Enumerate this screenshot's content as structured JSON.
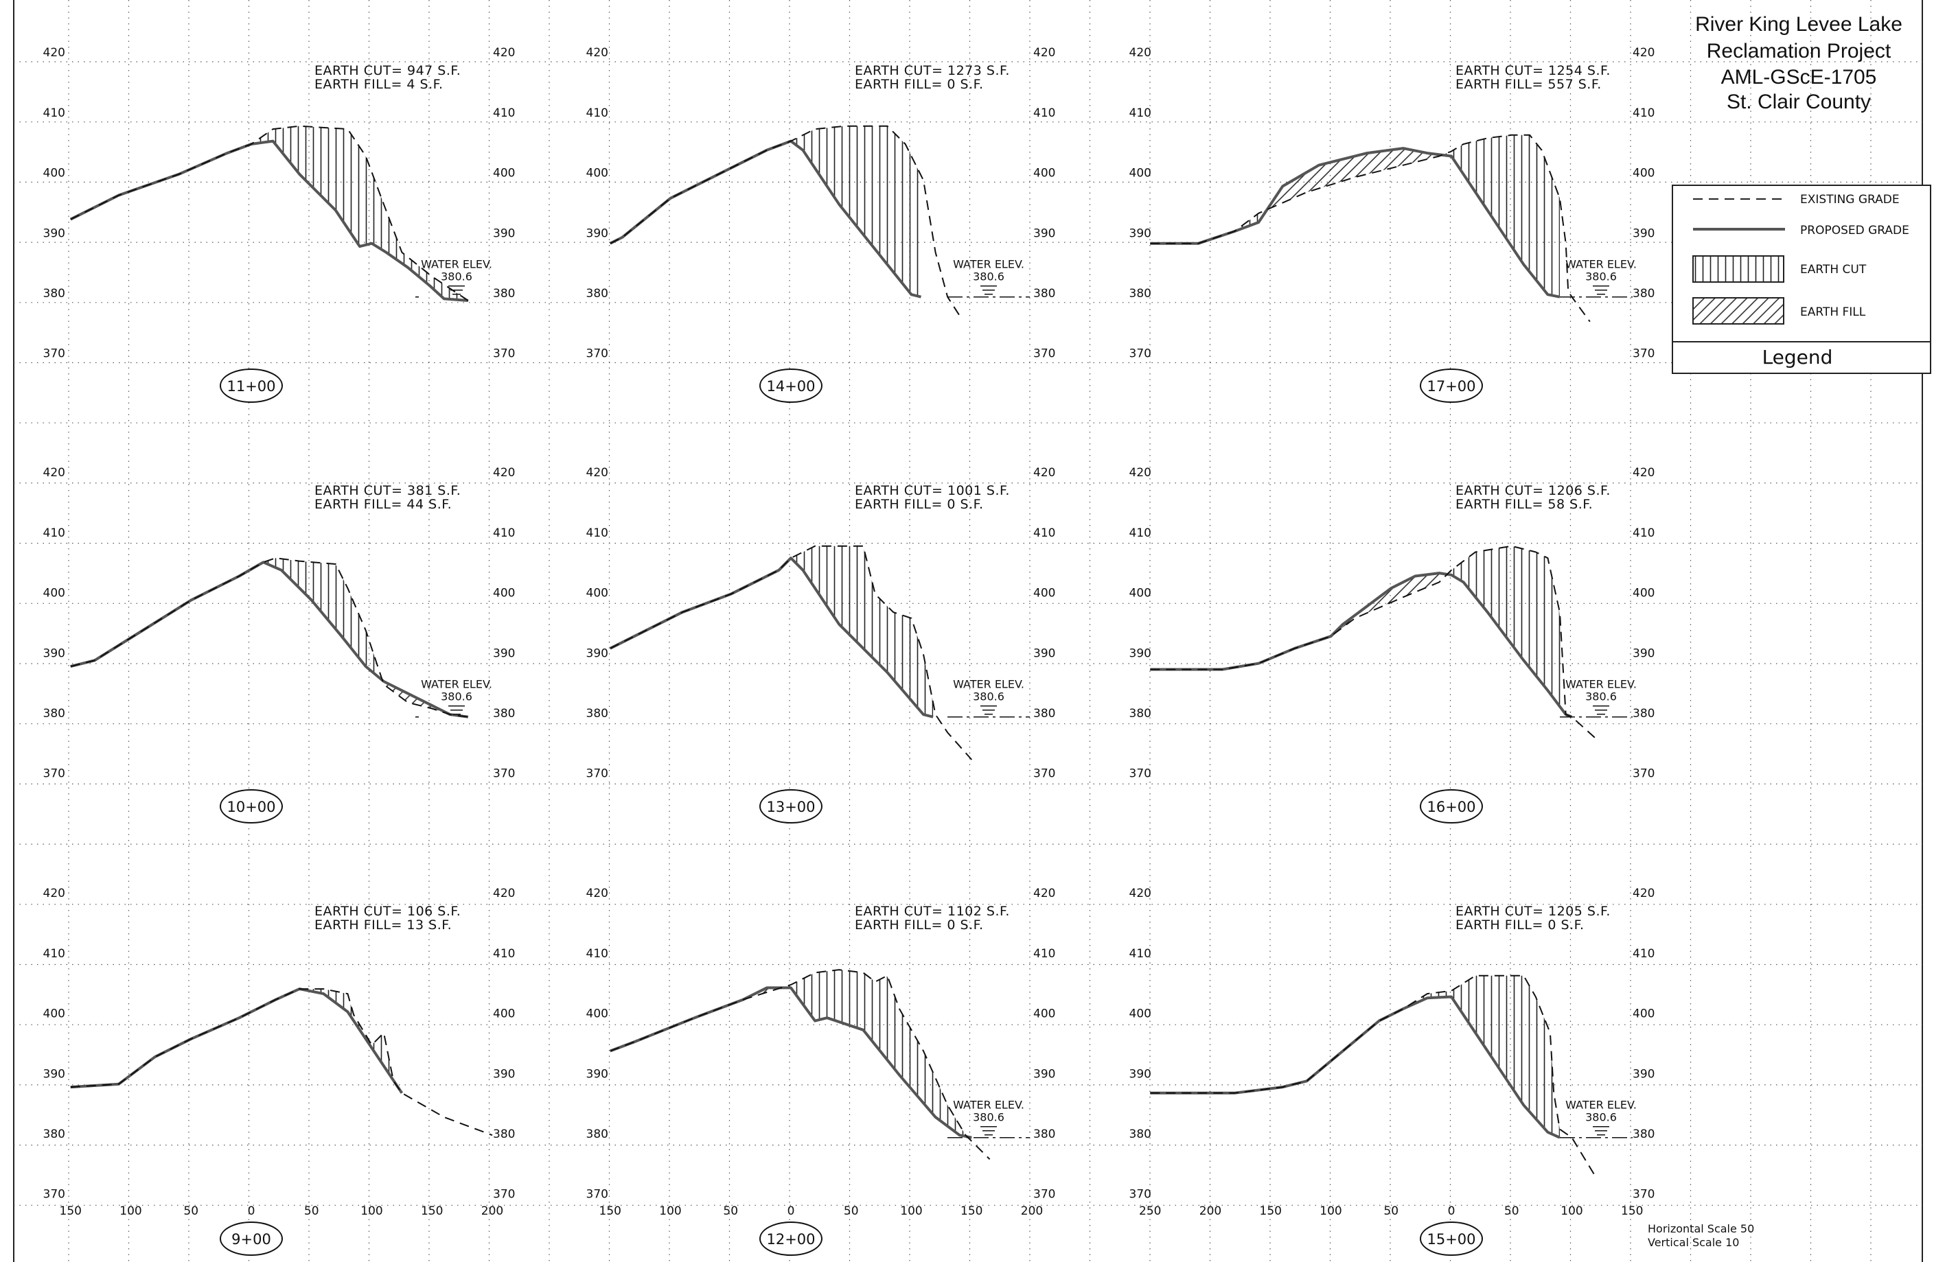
{
  "title": {
    "lines": [
      "River King Levee Lake",
      "Reclamation Project",
      "AML-GScE-1705",
      "St. Clair County"
    ]
  },
  "legend": {
    "title": "Legend",
    "items": [
      {
        "label": "EXISTING GRADE",
        "kind": "existing"
      },
      {
        "label": "PROPOSED GRADE",
        "kind": "proposed"
      },
      {
        "label": "EARTH CUT",
        "kind": "cut"
      },
      {
        "label": "EARTH FILL",
        "kind": "fill"
      }
    ]
  },
  "scale_note": {
    "horizontal": "Horizontal Scale 50",
    "vertical": "Vertical Scale 10"
  },
  "water_label": {
    "line1": "WATER ELEV.",
    "line2": "380.6"
  },
  "elev_ticks": [
    "370",
    "380",
    "390",
    "400",
    "410",
    "420"
  ],
  "offset_labels": {
    "col1": [
      "150",
      "100",
      "50",
      "0",
      "50",
      "100",
      "150",
      "200"
    ],
    "col2": [
      "150",
      "100",
      "50",
      "0",
      "50",
      "100",
      "150",
      "200"
    ],
    "col3": [
      "250",
      "200",
      "150",
      "100",
      "50",
      "0",
      "50",
      "100",
      "150"
    ]
  },
  "chart_data": [
    {
      "type": "line",
      "station": "11+00",
      "cut_label": "EARTH CUT=",
      "cut": "947",
      "fill_label": "EARTH FILL=",
      "fill": "4",
      "unit": "S.F.",
      "ylim": [
        370,
        420
      ],
      "water": true,
      "existing": [
        [
          -150,
          393.5
        ],
        [
          -110,
          397.5
        ],
        [
          -60,
          401
        ],
        [
          -20,
          404.5
        ],
        [
          0,
          406
        ],
        [
          18,
          408.5
        ],
        [
          40,
          409
        ],
        [
          80,
          408.5
        ],
        [
          95,
          404
        ],
        [
          110,
          396
        ],
        [
          125,
          388
        ],
        [
          150,
          384
        ],
        [
          165,
          382
        ],
        [
          180,
          380
        ]
      ],
      "proposed": [
        [
          -150,
          393.5
        ],
        [
          -110,
          397.5
        ],
        [
          -60,
          401
        ],
        [
          -20,
          404.5
        ],
        [
          0,
          406
        ],
        [
          18,
          406.5
        ],
        [
          40,
          401
        ],
        [
          70,
          395
        ],
        [
          90,
          389
        ],
        [
          100,
          389.5
        ],
        [
          112,
          388
        ],
        [
          130,
          385.5
        ],
        [
          148,
          382.5
        ],
        [
          160,
          380.3
        ],
        [
          180,
          380
        ]
      ]
    },
    {
      "type": "line",
      "station": "14+00",
      "cut_label": "EARTH CUT=",
      "cut": "1273",
      "fill_label": "EARTH FILL=",
      "fill": "0",
      "unit": "S.F.",
      "ylim": [
        370,
        420
      ],
      "water": true,
      "existing": [
        [
          -150,
          389.5
        ],
        [
          -140,
          390.5
        ],
        [
          -100,
          397
        ],
        [
          -60,
          401
        ],
        [
          -20,
          405
        ],
        [
          0,
          406.5
        ],
        [
          20,
          408.5
        ],
        [
          45,
          409
        ],
        [
          80,
          409
        ],
        [
          95,
          406
        ],
        [
          110,
          400
        ],
        [
          120,
          388
        ],
        [
          130,
          380.6
        ],
        [
          140,
          377.5
        ]
      ],
      "proposed": [
        [
          -150,
          389.5
        ],
        [
          -140,
          390.5
        ],
        [
          -100,
          397
        ],
        [
          -60,
          401
        ],
        [
          -20,
          405
        ],
        [
          0,
          406.5
        ],
        [
          10,
          405
        ],
        [
          40,
          396
        ],
        [
          80,
          386
        ],
        [
          100,
          381
        ],
        [
          108,
          380.6
        ]
      ]
    },
    {
      "type": "line",
      "station": "17+00",
      "cut_label": "EARTH CUT=",
      "cut": "1254",
      "fill_label": "EARTH FILL=",
      "fill": "557",
      "unit": "S.F.",
      "ylim": [
        370,
        420
      ],
      "water": true,
      "existing": [
        [
          -250,
          389.5
        ],
        [
          -210,
          389.5
        ],
        [
          -180,
          391.5
        ],
        [
          -160,
          394.5
        ],
        [
          -120,
          398
        ],
        [
          -80,
          400.5
        ],
        [
          -40,
          402.5
        ],
        [
          -10,
          404
        ],
        [
          0,
          404.8
        ],
        [
          10,
          406
        ],
        [
          30,
          407
        ],
        [
          50,
          407.5
        ],
        [
          65,
          407.5
        ],
        [
          75,
          405
        ],
        [
          90,
          397
        ],
        [
          95,
          389.5
        ],
        [
          97,
          381.5
        ],
        [
          100,
          380.6
        ],
        [
          115,
          376.5
        ]
      ],
      "proposed": [
        [
          -250,
          389.5
        ],
        [
          -210,
          389.5
        ],
        [
          -180,
          391.5
        ],
        [
          -160,
          393
        ],
        [
          -140,
          399
        ],
        [
          -110,
          402.5
        ],
        [
          -70,
          404.5
        ],
        [
          -40,
          405.3
        ],
        [
          -20,
          404.5
        ],
        [
          0,
          404
        ],
        [
          20,
          398
        ],
        [
          40,
          392
        ],
        [
          60,
          386
        ],
        [
          80,
          381
        ],
        [
          90,
          380.6
        ]
      ]
    },
    {
      "type": "line",
      "station": "10+00",
      "cut_label": "EARTH CUT=",
      "cut": "381",
      "fill_label": "EARTH FILL=",
      "fill": "44",
      "unit": "S.F.",
      "ylim": [
        370,
        420
      ],
      "water": true,
      "existing": [
        [
          -150,
          389
        ],
        [
          -130,
          390
        ],
        [
          -90,
          395
        ],
        [
          -50,
          400
        ],
        [
          -10,
          404
        ],
        [
          10,
          406.3
        ],
        [
          20,
          407
        ],
        [
          40,
          406.5
        ],
        [
          70,
          406
        ],
        [
          80,
          402
        ],
        [
          95,
          395
        ],
        [
          110,
          386
        ],
        [
          130,
          383
        ],
        [
          150,
          382
        ],
        [
          165,
          381
        ],
        [
          180,
          380.6
        ]
      ],
      "proposed": [
        [
          -150,
          389
        ],
        [
          -130,
          390
        ],
        [
          -90,
          395
        ],
        [
          -50,
          400
        ],
        [
          -10,
          404
        ],
        [
          10,
          406.3
        ],
        [
          25,
          405
        ],
        [
          50,
          400
        ],
        [
          75,
          394
        ],
        [
          95,
          389
        ],
        [
          110,
          386.5
        ],
        [
          135,
          384
        ],
        [
          150,
          382.5
        ],
        [
          165,
          381
        ],
        [
          180,
          380.6
        ]
      ]
    },
    {
      "type": "line",
      "station": "13+00",
      "cut_label": "EARTH CUT=",
      "cut": "1001",
      "fill_label": "EARTH FILL=",
      "fill": "0",
      "unit": "S.F.",
      "ylim": [
        370,
        420
      ],
      "water": true,
      "existing": [
        [
          -150,
          392
        ],
        [
          -130,
          394
        ],
        [
          -90,
          398
        ],
        [
          -50,
          401
        ],
        [
          -10,
          405
        ],
        [
          0,
          407
        ],
        [
          20,
          409
        ],
        [
          60,
          409
        ],
        [
          70,
          401
        ],
        [
          85,
          398
        ],
        [
          100,
          397
        ],
        [
          110,
          391
        ],
        [
          120,
          381
        ],
        [
          130,
          378
        ],
        [
          150,
          373.5
        ]
      ],
      "proposed": [
        [
          -150,
          392
        ],
        [
          -130,
          394
        ],
        [
          -90,
          398
        ],
        [
          -50,
          401
        ],
        [
          -10,
          405
        ],
        [
          0,
          407
        ],
        [
          10,
          405
        ],
        [
          40,
          396
        ],
        [
          80,
          388
        ],
        [
          110,
          381
        ],
        [
          118,
          380.6
        ]
      ]
    },
    {
      "type": "line",
      "station": "16+00",
      "cut_label": "EARTH CUT=",
      "cut": "1206",
      "fill_label": "EARTH FILL=",
      "fill": "58",
      "unit": "S.F.",
      "ylim": [
        370,
        420
      ],
      "water": true,
      "existing": [
        [
          -250,
          388.5
        ],
        [
          -190,
          388.5
        ],
        [
          -160,
          389.5
        ],
        [
          -130,
          392
        ],
        [
          -100,
          394
        ],
        [
          -80,
          397
        ],
        [
          -40,
          400.5
        ],
        [
          -10,
          403
        ],
        [
          0,
          405
        ],
        [
          20,
          408
        ],
        [
          50,
          409
        ],
        [
          70,
          408
        ],
        [
          80,
          407
        ],
        [
          90,
          398
        ],
        [
          95,
          381
        ],
        [
          100,
          380.6
        ],
        [
          120,
          377
        ]
      ],
      "proposed": [
        [
          -250,
          388.5
        ],
        [
          -190,
          388.5
        ],
        [
          -160,
          389.5
        ],
        [
          -130,
          392
        ],
        [
          -100,
          394
        ],
        [
          -90,
          396
        ],
        [
          -70,
          399
        ],
        [
          -50,
          402
        ],
        [
          -30,
          404
        ],
        [
          -10,
          404.5
        ],
        [
          0,
          404.2
        ],
        [
          10,
          403
        ],
        [
          30,
          398
        ],
        [
          60,
          390
        ],
        [
          80,
          385
        ],
        [
          95,
          381
        ],
        [
          100,
          380.6
        ]
      ]
    },
    {
      "type": "line",
      "station": "9+00",
      "cut_label": "EARTH CUT=",
      "cut": "106",
      "fill_label": "EARTH FILL=",
      "fill": "13",
      "unit": "S.F.",
      "ylim": [
        370,
        420
      ],
      "water": false,
      "existing": [
        [
          -150,
          389
        ],
        [
          -110,
          389.5
        ],
        [
          -80,
          394
        ],
        [
          -50,
          397
        ],
        [
          -10,
          400.5
        ],
        [
          20,
          403.5
        ],
        [
          40,
          405.3
        ],
        [
          60,
          405.3
        ],
        [
          80,
          404.5
        ],
        [
          85,
          401
        ],
        [
          100,
          396
        ],
        [
          110,
          398
        ],
        [
          118,
          390
        ],
        [
          125,
          388
        ],
        [
          160,
          384
        ],
        [
          200,
          381
        ]
      ],
      "proposed": [
        [
          -150,
          389
        ],
        [
          -110,
          389.5
        ],
        [
          -80,
          394
        ],
        [
          -50,
          397
        ],
        [
          -10,
          400.5
        ],
        [
          20,
          403.5
        ],
        [
          40,
          405.3
        ],
        [
          60,
          404.5
        ],
        [
          80,
          401.5
        ],
        [
          100,
          395.5
        ],
        [
          115,
          391
        ],
        [
          125,
          388
        ]
      ]
    },
    {
      "type": "line",
      "station": "12+00",
      "cut_label": "EARTH CUT=",
      "cut": "1102",
      "fill_label": "EARTH FILL=",
      "fill": "0",
      "unit": "S.F.",
      "ylim": [
        370,
        420
      ],
      "water": true,
      "existing": [
        [
          -150,
          395
        ],
        [
          -130,
          396.5
        ],
        [
          -80,
          400.5
        ],
        [
          -40,
          403.5
        ],
        [
          0,
          406
        ],
        [
          20,
          408
        ],
        [
          40,
          408.5
        ],
        [
          60,
          408
        ],
        [
          70,
          406.5
        ],
        [
          80,
          407.5
        ],
        [
          90,
          402
        ],
        [
          110,
          395
        ],
        [
          130,
          386
        ],
        [
          145,
          381
        ],
        [
          150,
          380
        ],
        [
          165,
          377
        ]
      ],
      "proposed": [
        [
          -150,
          395
        ],
        [
          -130,
          396.5
        ],
        [
          -80,
          400.5
        ],
        [
          -40,
          403.5
        ],
        [
          -20,
          405.5
        ],
        [
          0,
          405.5
        ],
        [
          20,
          400
        ],
        [
          30,
          400.5
        ],
        [
          60,
          398.5
        ],
        [
          90,
          391
        ],
        [
          120,
          384
        ],
        [
          140,
          381
        ],
        [
          150,
          380.6
        ]
      ]
    },
    {
      "type": "line",
      "station": "15+00",
      "cut_label": "EARTH CUT=",
      "cut": "1205",
      "fill_label": "EARTH FILL=",
      "fill": "0",
      "unit": "S.F.",
      "ylim": [
        370,
        420
      ],
      "water": true,
      "existing": [
        [
          -250,
          388
        ],
        [
          -180,
          388
        ],
        [
          -140,
          389
        ],
        [
          -120,
          390
        ],
        [
          -90,
          395
        ],
        [
          -60,
          400
        ],
        [
          -40,
          402
        ],
        [
          -20,
          404.5
        ],
        [
          0,
          405
        ],
        [
          20,
          407.5
        ],
        [
          60,
          407.5
        ],
        [
          70,
          404
        ],
        [
          82,
          398
        ],
        [
          85,
          388
        ],
        [
          90,
          382
        ],
        [
          100,
          380.6
        ],
        [
          120,
          374
        ]
      ],
      "proposed": [
        [
          -250,
          388
        ],
        [
          -180,
          388
        ],
        [
          -140,
          389
        ],
        [
          -120,
          390
        ],
        [
          -90,
          395
        ],
        [
          -60,
          400
        ],
        [
          -40,
          402
        ],
        [
          -20,
          403.8
        ],
        [
          0,
          404
        ],
        [
          20,
          398
        ],
        [
          40,
          392
        ],
        [
          60,
          386
        ],
        [
          80,
          381.5
        ],
        [
          90,
          380.6
        ]
      ]
    }
  ]
}
